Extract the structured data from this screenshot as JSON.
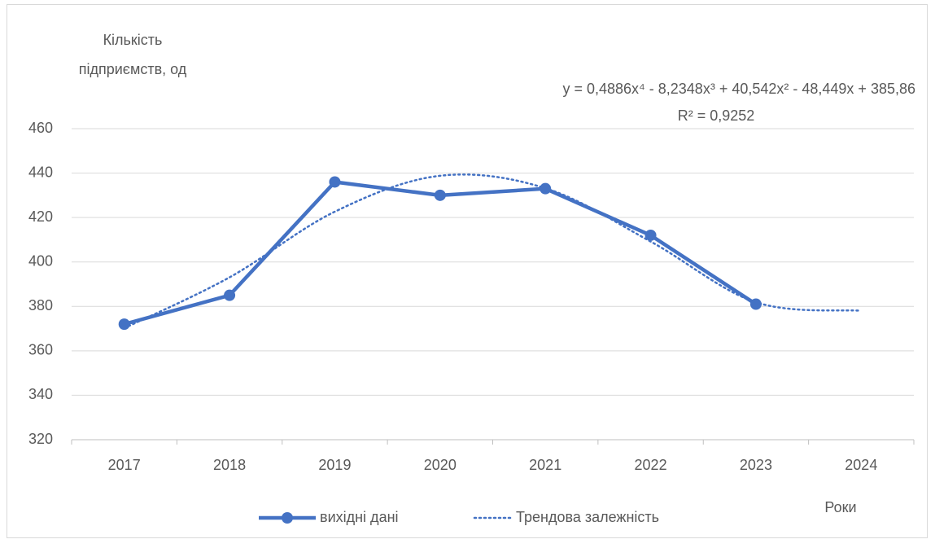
{
  "chart_data": {
    "type": "line",
    "y_label": [
      "Кількість",
      "підприємств, од"
    ],
    "x_label": "Роки",
    "annotations": [
      "y = 0,4886x⁴ - 8,2348x³ + 40,542x² - 48,449x + 385,86",
      "R² = 0,9252"
    ],
    "categories": [
      "2017",
      "2018",
      "2019",
      "2020",
      "2021",
      "2022",
      "2023",
      "2024"
    ],
    "series": [
      {
        "name": "вихідні дані",
        "color": "#4472c4",
        "style": "solid",
        "markers": true,
        "values": [
          372,
          385,
          436,
          430,
          433,
          412,
          381,
          null
        ]
      },
      {
        "name": "Трендова залежність",
        "color": "#4472c4",
        "style": "dotted",
        "markers": false,
        "values": [
          370.2,
          393.07,
          422.63,
          438.79,
          433.19,
          409.19,
          381.87,
          378.04
        ]
      }
    ],
    "ylim": [
      320,
      460
    ],
    "yticks": [
      320,
      340,
      360,
      380,
      400,
      420,
      440,
      460
    ],
    "grid": true
  }
}
